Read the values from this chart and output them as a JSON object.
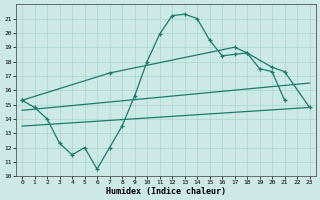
{
  "line1_x": [
    0,
    1,
    2,
    3,
    4,
    5,
    6,
    7,
    8,
    9,
    10,
    11,
    12,
    13,
    14,
    15,
    16,
    17,
    18,
    19,
    20,
    21
  ],
  "line1_y": [
    15.3,
    14.8,
    14.0,
    12.3,
    11.5,
    12.0,
    10.5,
    12.0,
    13.5,
    15.6,
    18.0,
    19.9,
    21.2,
    21.3,
    21.0,
    19.5,
    18.4,
    18.5,
    18.6,
    17.5,
    17.3,
    15.3
  ],
  "line2_x": [
    0,
    7,
    17,
    18,
    20,
    21,
    23
  ],
  "line2_y": [
    15.3,
    17.2,
    19.0,
    18.6,
    17.6,
    17.3,
    14.8
  ],
  "line3_x": [
    0,
    23
  ],
  "line3_y": [
    13.5,
    14.8
  ],
  "line4_x": [
    0,
    23
  ],
  "line4_y": [
    14.6,
    16.5
  ],
  "bg_color": "#cce9e5",
  "line_color": "#1a7a6e",
  "grid_color": "#aad4ce",
  "xlabel": "Humidex (Indice chaleur)",
  "ylim": [
    10,
    22
  ],
  "xlim": [
    -0.5,
    23.5
  ],
  "yticks": [
    10,
    11,
    12,
    13,
    14,
    15,
    16,
    17,
    18,
    19,
    20,
    21
  ],
  "xticks": [
    0,
    1,
    2,
    3,
    4,
    5,
    6,
    7,
    8,
    9,
    10,
    11,
    12,
    13,
    14,
    15,
    16,
    17,
    18,
    19,
    20,
    21,
    22,
    23
  ]
}
